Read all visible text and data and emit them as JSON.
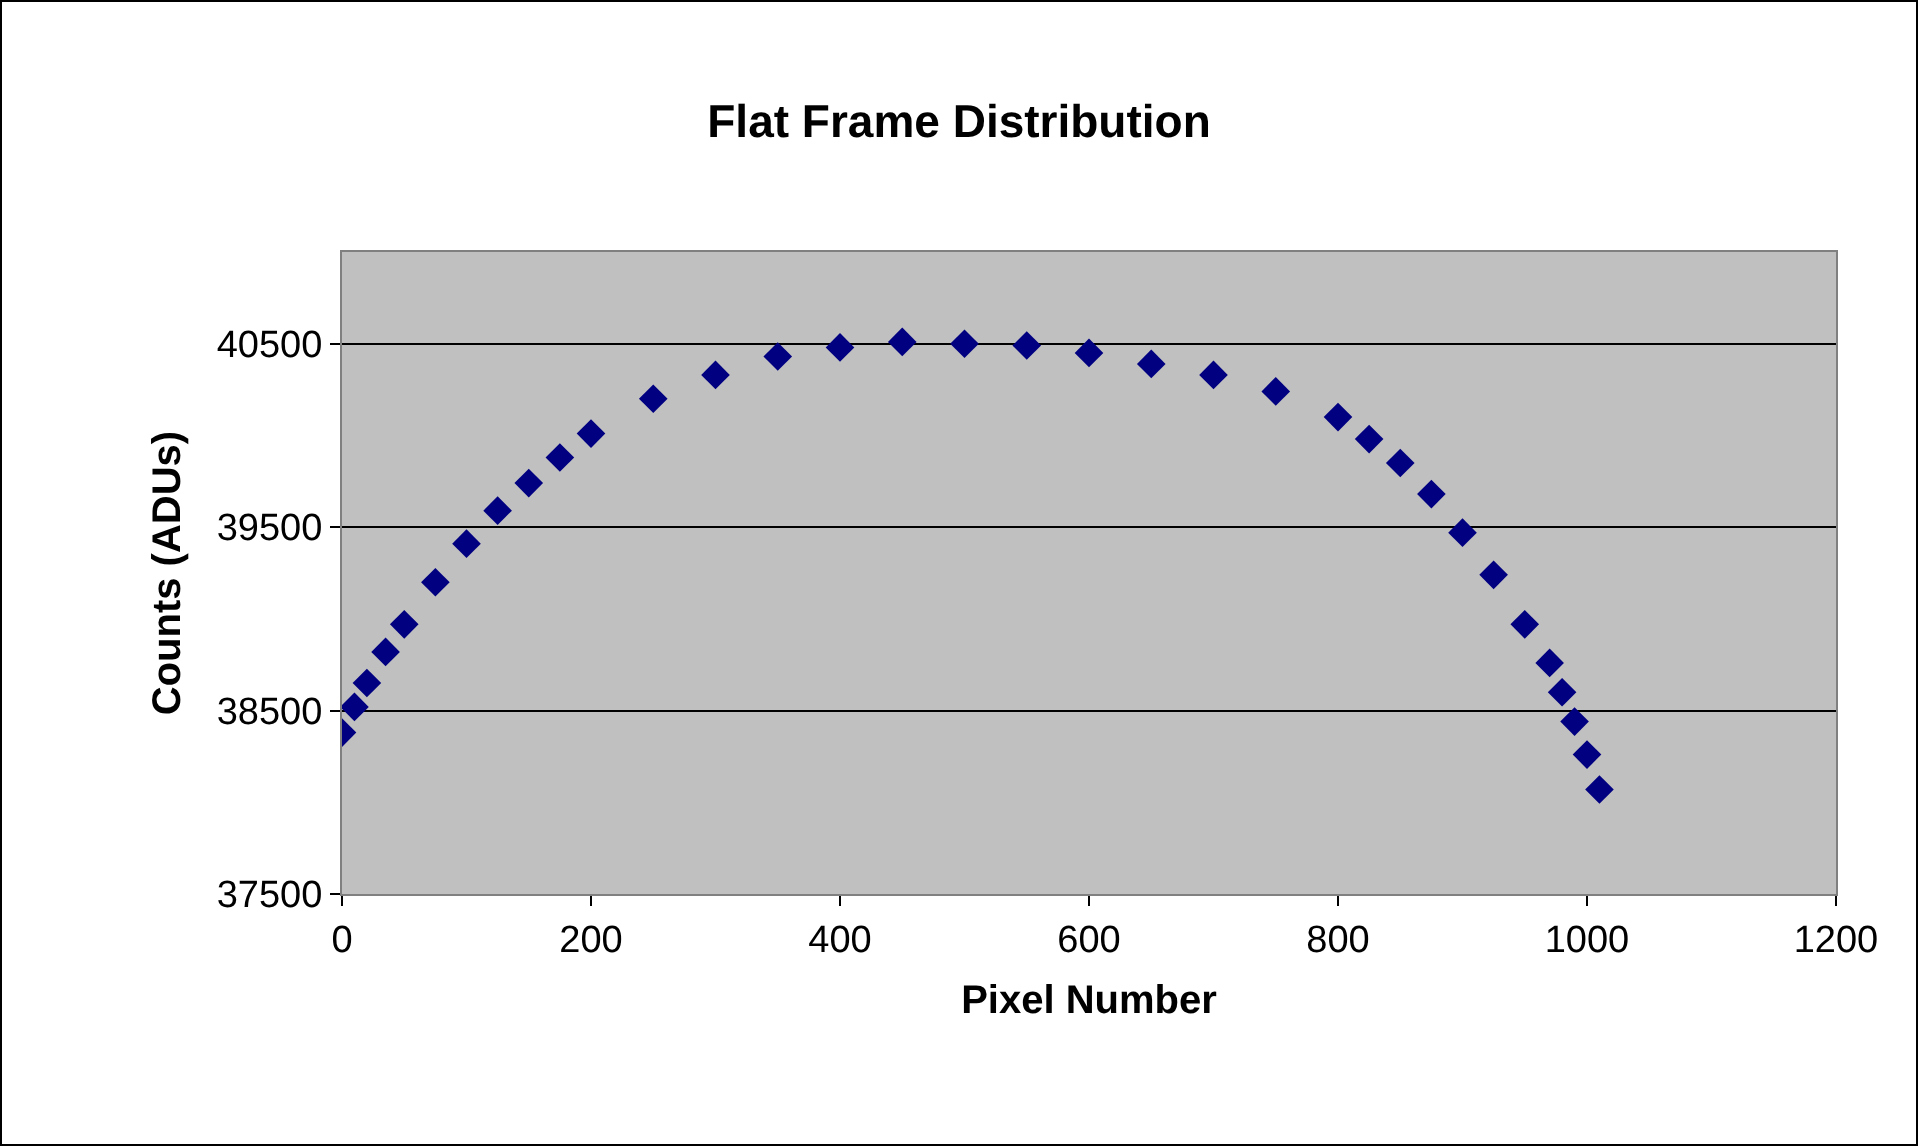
{
  "chart_data": {
    "type": "scatter",
    "title": "Flat Frame Distribution",
    "xlabel": "Pixel Number",
    "ylabel": "Counts (ADUs)",
    "x": [
      0,
      10,
      20,
      35,
      50,
      75,
      100,
      125,
      150,
      175,
      200,
      250,
      300,
      350,
      400,
      450,
      500,
      550,
      600,
      650,
      700,
      750,
      800,
      825,
      850,
      875,
      900,
      925,
      950,
      970,
      980,
      990,
      1000,
      1010
    ],
    "series": [
      {
        "color": "#000080",
        "values": [
          38380,
          38520,
          38650,
          38820,
          38970,
          39200,
          39410,
          39590,
          39740,
          39880,
          40010,
          40200,
          40330,
          40430,
          40480,
          40510,
          40500,
          40490,
          40450,
          40390,
          40330,
          40240,
          40100,
          39980,
          39850,
          39680,
          39470,
          39240,
          38970,
          38760,
          38600,
          38440,
          38260,
          38070
        ]
      }
    ],
    "xlim": [
      0,
      1200
    ],
    "xticks": [
      0,
      200,
      400,
      600,
      800,
      1000,
      1200
    ],
    "ylim": [
      37500,
      41000
    ],
    "yticks": [
      37500,
      38500,
      39500,
      40500
    ],
    "grid": "y",
    "marker": "diamond"
  }
}
